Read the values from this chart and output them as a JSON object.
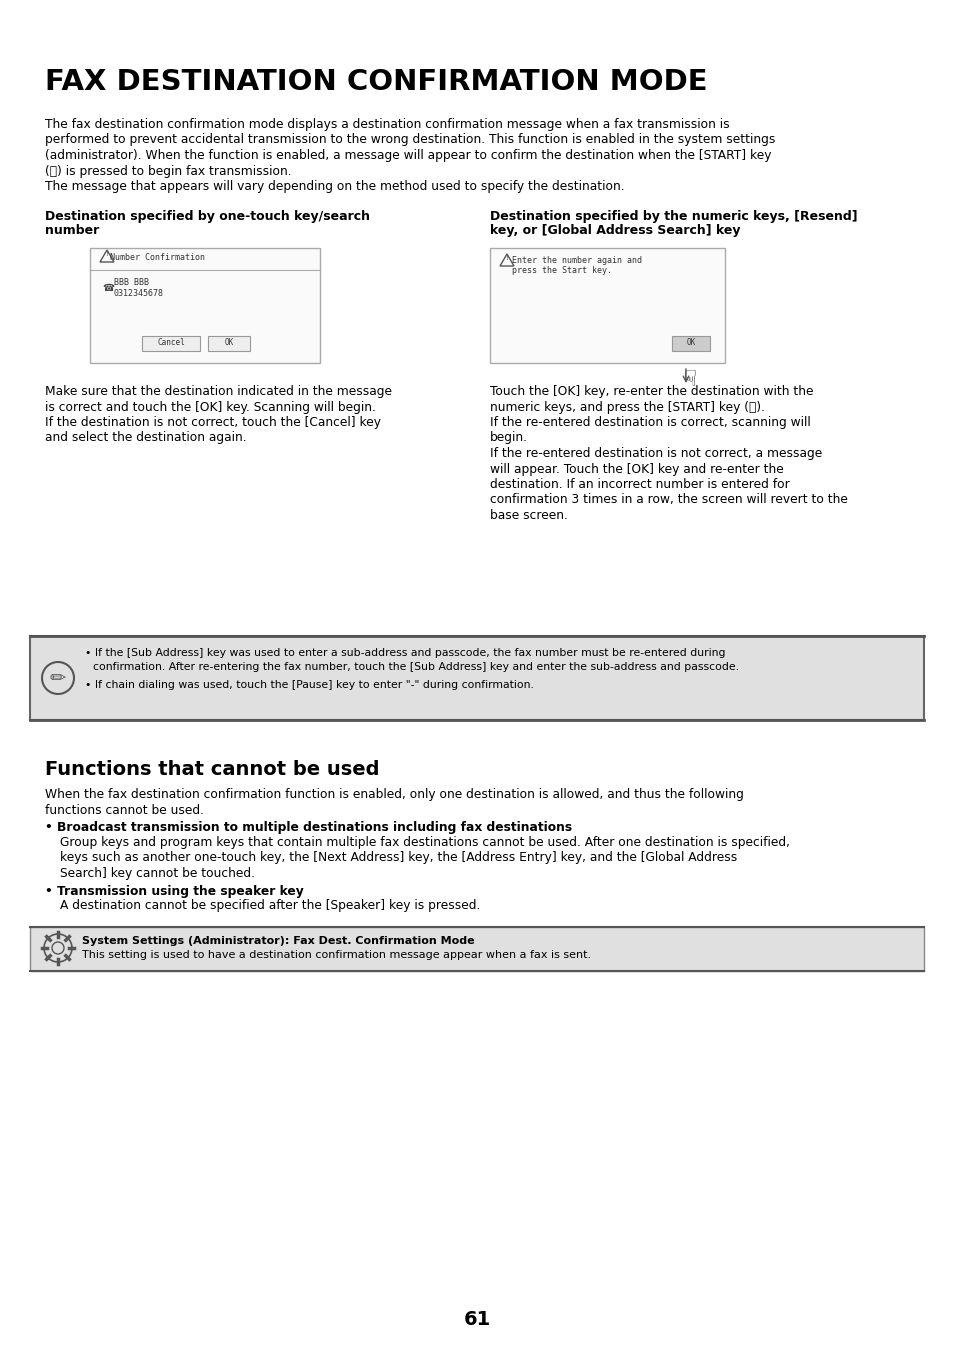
{
  "title": "FAX DESTINATION CONFIRMATION MODE",
  "bg_color": "#ffffff",
  "text_color": "#000000",
  "page_number": "61",
  "intro_para_lines": [
    "The fax destination confirmation mode displays a destination confirmation message when a fax transmission is",
    "performed to prevent accidental transmission to the wrong destination. This function is enabled in the system settings",
    "(administrator). When the function is enabled, a message will appear to confirm the destination when the [START] key",
    "(Ⓢ) is pressed to begin fax transmission.",
    "The message that appears will vary depending on the method used to specify the destination."
  ],
  "col1_header_lines": [
    "Destination specified by one-touch key/search",
    "number"
  ],
  "col2_header_lines": [
    "Destination specified by the numeric keys, [Resend]",
    "key, or [Global Address Search] key"
  ],
  "col1_body_lines": [
    "Make sure that the destination indicated in the message",
    "is correct and touch the [OK] key. Scanning will begin.",
    "If the destination is not correct, touch the [Cancel] key",
    "and select the destination again."
  ],
  "col2_body_lines": [
    "Touch the [OK] key, re-enter the destination with the",
    "numeric keys, and press the [START] key (Ⓢ).",
    "If the re-entered destination is correct, scanning will",
    "begin.",
    "If the re-entered destination is not correct, a message",
    "will appear. Touch the [OK] key and re-enter the",
    "destination. If an incorrect number is entered for",
    "confirmation 3 times in a row, the screen will revert to the",
    "base screen."
  ],
  "note_bullet1_lines": [
    "If the [Sub Address] key was used to enter a sub-address and passcode, the fax number must be re-entered during",
    "confirmation. After re-entering the fax number, touch the [Sub Address] key and enter the sub-address and passcode."
  ],
  "note_bullet2": "If chain dialing was used, touch the [Pause] key to enter \"-\" during confirmation.",
  "section2_title": "Functions that cannot be used",
  "section2_intro_lines": [
    "When the fax destination confirmation function is enabled, only one destination is allowed, and thus the following",
    "functions cannot be used."
  ],
  "bullet1_title": "Broadcast transmission to multiple destinations including fax destinations",
  "bullet1_body_lines": [
    "Group keys and program keys that contain multiple fax destinations cannot be used. After one destination is specified,",
    "keys such as another one-touch key, the [Next Address] key, the [Address Entry] key, and the [Global Address",
    "Search] key cannot be touched."
  ],
  "bullet2_title": "Transmission using the speaker key",
  "bullet2_body": "A destination cannot be specified after the [Speaker] key is pressed.",
  "system_title": "System Settings (Administrator): Fax Dest. Confirmation Mode",
  "system_body": "This setting is used to have a destination confirmation message appear when a fax is sent.",
  "note_bg": "#e0e0e0",
  "system_bg": "#e0e0e0",
  "box1_dialog_title": "Number Confirmation",
  "box1_phone_line1": "BBB BBB",
  "box1_phone_line2": "0312345678",
  "box2_line1": "Enter the number again and",
  "box2_line2": "press the Start key."
}
